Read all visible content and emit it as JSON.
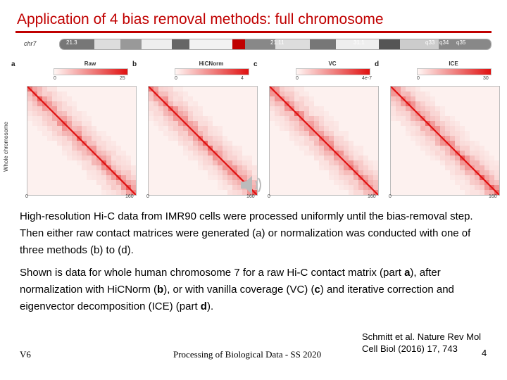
{
  "slide": {
    "title": "Application of 4 bias removal methods: full chromosome",
    "accent_color": "#c00000"
  },
  "figure": {
    "chromosome_label": "chr7",
    "bands": [
      "21.3",
      "21.11",
      "31.1",
      "q33",
      "q34",
      "q35"
    ],
    "y_axis_label": "Whole chromosome",
    "matrix_color": "#e01010",
    "panels": [
      {
        "letter": "a",
        "method": "Raw",
        "scale_min": "0",
        "scale_max": "25",
        "axis_min": "0",
        "axis_max": "160"
      },
      {
        "letter": "b",
        "method": "HiCNorm",
        "scale_min": "0",
        "scale_max": "4",
        "axis_min": "0",
        "axis_max": "160"
      },
      {
        "letter": "c",
        "method": "VC",
        "scale_min": "0",
        "scale_max": "4e-7",
        "axis_min": "0",
        "axis_max": "160"
      },
      {
        "letter": "d",
        "method": "ICE",
        "scale_min": "0",
        "scale_max": "30",
        "axis_min": "0",
        "axis_max": "160"
      }
    ],
    "audio_icon": "speaker-icon"
  },
  "body": {
    "p1": "High-resolution Hi‑C data from IMR90 cells were processed uniformly until the bias-removal step. Then either raw contact matrices were generated (a) or normalization was conducted with one of three methods (b) to (d).",
    "p2": {
      "s1": "Shown is data for whole human chromosome 7 for a raw Hi‑C contact matrix (part ",
      "a": "a",
      "s2": "), after normalization with HiCNorm (",
      "b": "b",
      "s3": "), or with vanilla coverage (VC) (",
      "c": "c",
      "s4": ") and iterative correction and eigenvector decomposition (ICE) (part ",
      "d": "d",
      "s5": ")."
    }
  },
  "footer": {
    "section": "V6",
    "course": "Processing of Biological Data - SS 2020",
    "citation_line1": "Schmitt et al. Nature Rev Mol",
    "citation_line2": "Cell Biol (2016) 17, 743",
    "page": "4"
  }
}
